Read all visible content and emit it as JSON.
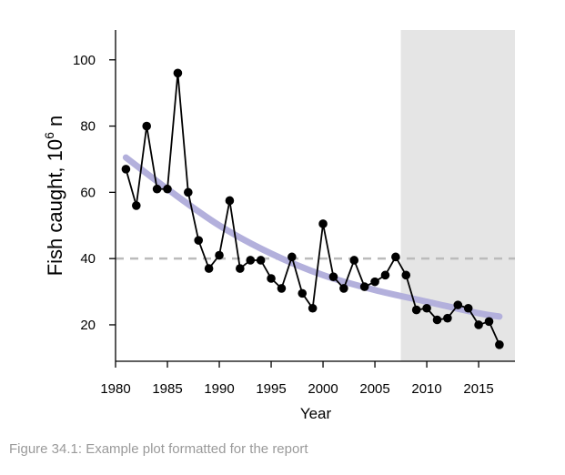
{
  "caption": "Figure 34.1: Example plot formatted for the report",
  "chart_data": {
    "type": "line",
    "xlabel": "Year",
    "ylabel": "Fish caught, 10",
    "ylabel_superscript": "6",
    "ylabel_suffix": " n",
    "xlim": [
      1980,
      2018.5
    ],
    "ylim": [
      9,
      109
    ],
    "x_ticks": [
      1980,
      1985,
      1990,
      1995,
      2000,
      2005,
      2010,
      2015
    ],
    "y_ticks": [
      20,
      40,
      60,
      80,
      100
    ],
    "reference_line": {
      "y": 40,
      "style": "dashed",
      "color": "#bbbbbb"
    },
    "shaded_region": {
      "x_start": 2007.5,
      "x_end": 2018.5,
      "color": "#e5e5e5"
    },
    "series": [
      {
        "x": [
          1981,
          1982,
          1983,
          1984,
          1985,
          1986,
          1987,
          1988,
          1989,
          1990,
          1991,
          1992,
          1993,
          1994,
          1995,
          1996,
          1997,
          1998,
          1999,
          2000,
          2001,
          2002,
          2003,
          2004,
          2005,
          2006,
          2007,
          2008,
          2009,
          2010,
          2011,
          2012,
          2013,
          2014,
          2015,
          2016,
          2017
        ],
        "values": [
          67,
          56,
          80,
          61,
          61,
          96,
          60,
          45.5,
          37,
          41,
          57.5,
          37,
          39.5,
          39.5,
          34,
          31,
          40.5,
          29.5,
          25,
          50.5,
          34.5,
          31,
          39.5,
          31.5,
          33,
          35,
          40.5,
          35,
          24.5,
          25,
          21.5,
          22,
          26,
          25,
          20,
          21,
          14
        ],
        "color": "#000000",
        "marker": "circle"
      },
      {
        "x": [
          1981,
          1985,
          1990,
          1995,
          2000,
          2005,
          2010,
          2015,
          2017
        ],
        "values": [
          70.5,
          61,
          50,
          41.5,
          35,
          30.5,
          27,
          23.5,
          22.5
        ],
        "color": "#b3b0dc",
        "style": "thick-smooth"
      }
    ]
  }
}
